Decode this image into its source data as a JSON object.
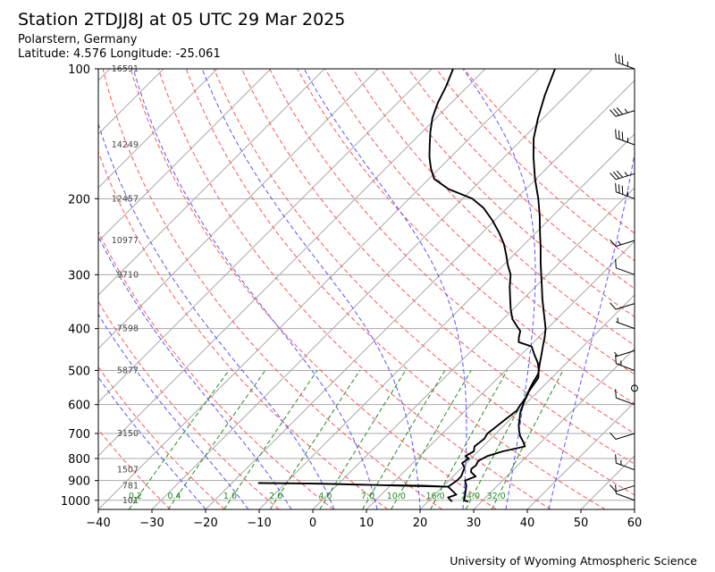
{
  "header": {
    "title": "Station 2TDJJ8J at 05 UTC 29 Mar 2025",
    "location": "Polarstern, Germany",
    "coords": "Latitude: 4.576 Longitude: -25.061"
  },
  "footer": {
    "credit": "University of Wyoming Atmospheric Science"
  },
  "chart_data": {
    "type": "line",
    "subtype": "skew-T log-P diagram",
    "xlabel": "",
    "ylabel": "",
    "xlim": [
      -40,
      60
    ],
    "ylim": [
      1050,
      100
    ],
    "y_scale": "log",
    "x_ticks": [
      -40,
      -30,
      -20,
      -10,
      0,
      10,
      20,
      30,
      40,
      50,
      60
    ],
    "y_ticks": [
      100,
      200,
      300,
      400,
      500,
      600,
      700,
      800,
      900,
      1000
    ],
    "grid": true,
    "height_labels": [
      {
        "p": 100,
        "text": "16591"
      },
      {
        "p": 150,
        "text": "14249"
      },
      {
        "p": 200,
        "text": "12457"
      },
      {
        "p": 250,
        "text": "10977"
      },
      {
        "p": 300,
        "text": "9710"
      },
      {
        "p": 400,
        "text": "7598"
      },
      {
        "p": 500,
        "text": "5877"
      },
      {
        "p": 700,
        "text": "3150"
      },
      {
        "p": 850,
        "text": "1507"
      },
      {
        "p": 925,
        "text": "781"
      },
      {
        "p": 1000,
        "text": "101"
      }
    ],
    "mixing_ratio_labels": [
      "0.2",
      "0.4",
      "1.0",
      "2.0",
      "4.0",
      "7.0",
      "10.0",
      "16.0",
      "24.0",
      "32.0"
    ],
    "mixing_ratios": [
      0.2,
      0.4,
      1.0,
      2.0,
      4.0,
      7.0,
      10.0,
      16.0,
      24.0,
      32.0
    ],
    "series": [
      {
        "role": "temperature",
        "values": [
          [
            1007,
            27.5
          ],
          [
            1000,
            26.5
          ],
          [
            975,
            25.8
          ],
          [
            950,
            25.0
          ],
          [
            925,
            24.2
          ],
          [
            900,
            23.0
          ],
          [
            880,
            24.2
          ],
          [
            860,
            22.5
          ],
          [
            845,
            22.0
          ],
          [
            830,
            22.2
          ],
          [
            810,
            21.8
          ],
          [
            790,
            22.6
          ],
          [
            770,
            24.6
          ],
          [
            750,
            27.8
          ],
          [
            730,
            26.5
          ],
          [
            710,
            25.0
          ],
          [
            690,
            23.8
          ],
          [
            670,
            22.7
          ],
          [
            650,
            21.8
          ],
          [
            630,
            20.8
          ],
          [
            610,
            20.0
          ],
          [
            590,
            19.3
          ],
          [
            570,
            18.6
          ],
          [
            550,
            17.9
          ],
          [
            530,
            17.3
          ],
          [
            510,
            16.8
          ],
          [
            500,
            16.2
          ],
          [
            480,
            15.0
          ],
          [
            460,
            13.8
          ],
          [
            440,
            12.5
          ],
          [
            420,
            11.2
          ],
          [
            400,
            9.7
          ],
          [
            380,
            7.7
          ],
          [
            360,
            5.6
          ],
          [
            340,
            3.4
          ],
          [
            320,
            1.2
          ],
          [
            300,
            -1.2
          ],
          [
            280,
            -3.7
          ],
          [
            260,
            -6.3
          ],
          [
            240,
            -9.2
          ],
          [
            220,
            -12.3
          ],
          [
            200,
            -15.9
          ],
          [
            180,
            -20.2
          ],
          [
            160,
            -24.6
          ],
          [
            145,
            -28.0
          ],
          [
            130,
            -31.0
          ],
          [
            115,
            -34.0
          ],
          [
            100,
            -37.0
          ]
        ]
      },
      {
        "role": "dewpoint",
        "values": [
          [
            1007,
            24.5
          ],
          [
            1000,
            24.0
          ],
          [
            985,
            23.0
          ],
          [
            970,
            24.0
          ],
          [
            950,
            22.5
          ],
          [
            930,
            21.0
          ],
          [
            925,
            16.0
          ],
          [
            920,
            4.0
          ],
          [
            915,
            -5.0
          ],
          [
            912,
            -15.0
          ],
          [
            915,
            -4.0
          ],
          [
            920,
            5.0
          ],
          [
            925,
            12.0
          ],
          [
            928,
            17.0
          ],
          [
            930,
            21.0
          ],
          [
            900,
            21.5
          ],
          [
            880,
            21.5
          ],
          [
            860,
            21.0
          ],
          [
            840,
            20.5
          ],
          [
            820,
            19.2
          ],
          [
            800,
            19.6
          ],
          [
            790,
            18.5
          ],
          [
            770,
            19.2
          ],
          [
            750,
            18.4
          ],
          [
            720,
            18.8
          ],
          [
            700,
            18.4
          ],
          [
            680,
            18.7
          ],
          [
            650,
            19.1
          ],
          [
            620,
            19.6
          ],
          [
            600,
            19.2
          ],
          [
            580,
            19.0
          ],
          [
            560,
            18.3
          ],
          [
            540,
            17.9
          ],
          [
            520,
            17.5
          ],
          [
            500,
            16.2
          ],
          [
            480,
            14.6
          ],
          [
            460,
            12.5
          ],
          [
            440,
            10.4
          ],
          [
            430,
            7.2
          ],
          [
            420,
            6.4
          ],
          [
            405,
            5.4
          ],
          [
            395,
            3.9
          ],
          [
            380,
            1.7
          ],
          [
            360,
            -0.5
          ],
          [
            340,
            -2.6
          ],
          [
            320,
            -4.8
          ],
          [
            300,
            -6.9
          ],
          [
            285,
            -9.2
          ],
          [
            270,
            -11.4
          ],
          [
            255,
            -13.8
          ],
          [
            240,
            -16.8
          ],
          [
            225,
            -20.3
          ],
          [
            210,
            -24.4
          ],
          [
            200,
            -28.2
          ],
          [
            190,
            -34.4
          ],
          [
            180,
            -39.0
          ],
          [
            170,
            -41.6
          ],
          [
            160,
            -44.0
          ],
          [
            150,
            -46.2
          ],
          [
            140,
            -48.5
          ],
          [
            130,
            -50.7
          ],
          [
            120,
            -52.5
          ],
          [
            110,
            -54.0
          ],
          [
            100,
            -56.0
          ]
        ]
      }
    ],
    "wind_barbs": [
      {
        "p": 1000,
        "speed_kt": 10
      },
      {
        "p": 925,
        "speed_kt": 10
      },
      {
        "p": 850,
        "speed_kt": 15
      },
      {
        "p": 700,
        "speed_kt": 10
      },
      {
        "p": 600,
        "speed_kt": 10
      },
      {
        "p": 550,
        "speed_kt": 0
      },
      {
        "p": 500,
        "speed_kt": 15
      },
      {
        "p": 450,
        "speed_kt": 5
      },
      {
        "p": 400,
        "speed_kt": 5
      },
      {
        "p": 350,
        "speed_kt": 10
      },
      {
        "p": 300,
        "speed_kt": 10
      },
      {
        "p": 250,
        "speed_kt": 15
      },
      {
        "p": 200,
        "speed_kt": 35
      },
      {
        "p": 175,
        "speed_kt": 35
      },
      {
        "p": 150,
        "speed_kt": 35
      },
      {
        "p": 125,
        "speed_kt": 35
      },
      {
        "p": 100,
        "speed_kt": 35
      }
    ],
    "colors": {
      "temperature": "#000000",
      "dewpoint": "#000000",
      "isotherm": "#aaaaaa",
      "isobar": "#aaaaaa",
      "dry_adiabat": "#ff5555",
      "moist_adiabat": "#5555ff",
      "mixing_ratio": "#228b22",
      "height_text": "#444444",
      "mixing_text": "#228b22"
    }
  }
}
